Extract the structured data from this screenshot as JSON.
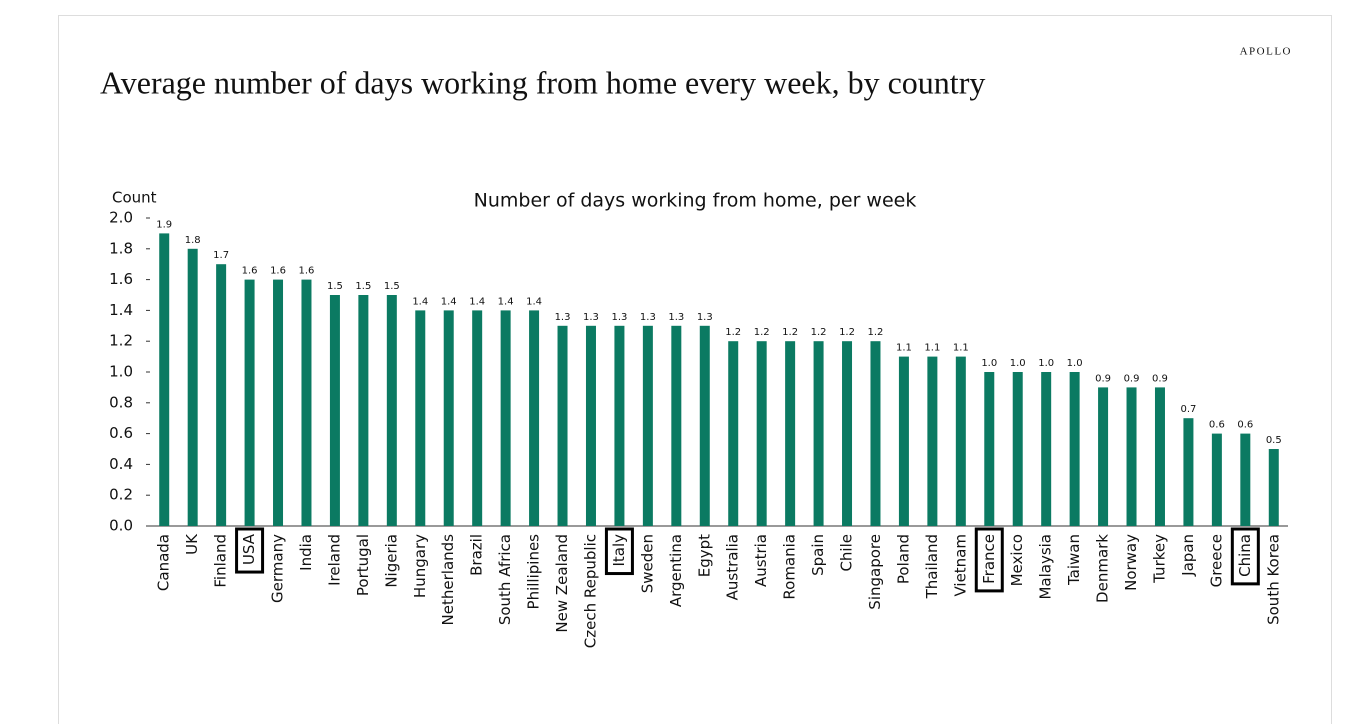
{
  "brand": "APOLLO",
  "chart_data": {
    "type": "bar",
    "title": "Average number of  days working from home every week, by country",
    "subtitle": "Number of days working from home, per week",
    "y_axis_label": "Count",
    "categories": [
      "Canada",
      "UK",
      "Finland",
      "USA",
      "Germany",
      "India",
      "Ireland",
      "Portugal",
      "Nigeria",
      "Hungary",
      "Netherlands",
      "Brazil",
      "South Africa",
      "Phillipines",
      "New Zealand",
      "Czech Republic",
      "Italy",
      "Sweden",
      "Argentina",
      "Egypt",
      "Australia",
      "Austria",
      "Romania",
      "Spain",
      "Chile",
      "Singapore",
      "Poland",
      "Thailand",
      "Vietnam",
      "France",
      "Mexico",
      "Malaysia",
      "Taiwan",
      "Denmark",
      "Norway",
      "Turkey",
      "Japan",
      "Greece",
      "China",
      "South Korea"
    ],
    "values": [
      1.9,
      1.8,
      1.7,
      1.6,
      1.6,
      1.6,
      1.5,
      1.5,
      1.5,
      1.4,
      1.4,
      1.4,
      1.4,
      1.4,
      1.3,
      1.3,
      1.3,
      1.3,
      1.3,
      1.3,
      1.2,
      1.2,
      1.2,
      1.2,
      1.2,
      1.2,
      1.1,
      1.1,
      1.1,
      1,
      1,
      1,
      1,
      0.9,
      0.9,
      0.9,
      0.7,
      0.6,
      0.6,
      0.5
    ],
    "value_labels": [
      "1.9",
      "1.8",
      "1.7",
      "1.6",
      "1.6",
      "1.6",
      "1.5",
      "1.5",
      "1.5",
      "1.4",
      "1.4",
      "1.4",
      "1.4",
      "1.4",
      "1.3",
      "1.3",
      "1.3",
      "1.3",
      "1.3",
      "1.3",
      "1.2",
      "1.2",
      "1.2",
      "1.2",
      "1.2",
      "1.2",
      "1.1",
      "1.1",
      "1.1",
      "1.0",
      "1.0",
      "1.0",
      "1.0",
      "0.9",
      "0.9",
      "0.9",
      "0.7",
      "0.6",
      "0.6",
      "0.5"
    ],
    "color": "#0b7a62",
    "ylim": [
      0,
      2
    ],
    "yticks": [
      {
        "value": 0,
        "label": "0.0"
      },
      0.2,
      0.4,
      0.6,
      0.8,
      {
        "value": 1,
        "label": "1.0"
      },
      1.2,
      1.4,
      1.6,
      1.8,
      {
        "value": 2,
        "label": "2.0"
      }
    ],
    "highlighted": [
      "USA",
      "Italy",
      "France",
      "China"
    ]
  }
}
